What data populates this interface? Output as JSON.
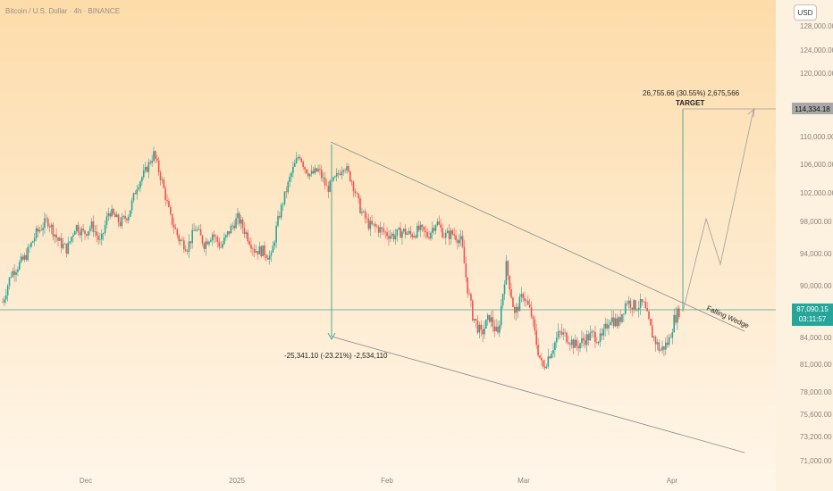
{
  "header": {
    "symbol_title": "Bitcoin / U.S. Dollar · 4h · BINANCE",
    "currency": "USD"
  },
  "colors": {
    "up": "#26a69a",
    "down": "#ef5350",
    "measure": "#3aa58c",
    "trendline": "#8a8a8a",
    "price_line": "#4aa58f",
    "badge_price": "#26a69a",
    "badge_target": "#9e9e9e"
  },
  "chart_data": {
    "type": "candlestick",
    "y_axis": {
      "ticks": [
        "128,000.00",
        "124,000.00",
        "120,000.00",
        "114,334.18",
        "110,000.00",
        "106,000.00",
        "102,000.00",
        "98,000.00",
        "94,000.00",
        "90,000.00",
        "87,090.15",
        "84,000.00",
        "81,000.00",
        "78,000.00",
        "75,600.00",
        "73,200.00",
        "71,000.00"
      ],
      "range": [
        70000,
        130000
      ]
    },
    "x_axis": {
      "labels": [
        "Dec",
        "2025",
        "Feb",
        "Mar",
        "Apr"
      ]
    },
    "price": {
      "last": 87090.15,
      "last_label": "87,090.15",
      "countdown": "03:11:57"
    },
    "target": {
      "value": 114334.18,
      "label": "114,334.18",
      "measure_text": "26,755.66 (30.55%) 2,675,566",
      "name": "TARGET"
    },
    "drop_measure": {
      "text": "-25,341.10 (-23.21%) -2,534,110"
    },
    "pattern_label": "Falling Wedge",
    "path": [
      {
        "t": 0,
        "p": 88000
      },
      {
        "t": 1.5,
        "p": 91500
      },
      {
        "t": 4,
        "p": 93500
      },
      {
        "t": 6,
        "p": 96500
      },
      {
        "t": 8,
        "p": 98200
      },
      {
        "t": 10,
        "p": 95500
      },
      {
        "t": 11.5,
        "p": 94500
      },
      {
        "t": 13,
        "p": 97500
      },
      {
        "t": 14.5,
        "p": 96500
      },
      {
        "t": 16,
        "p": 97500
      },
      {
        "t": 17.5,
        "p": 95200
      },
      {
        "t": 19,
        "p": 99500
      },
      {
        "t": 21,
        "p": 97800
      },
      {
        "t": 22.5,
        "p": 99000
      },
      {
        "t": 24,
        "p": 103000
      },
      {
        "t": 25.5,
        "p": 105000
      },
      {
        "t": 27,
        "p": 107500
      },
      {
        "t": 28.5,
        "p": 103500
      },
      {
        "t": 30,
        "p": 98500
      },
      {
        "t": 31.5,
        "p": 95800
      },
      {
        "t": 33,
        "p": 94800
      },
      {
        "t": 34.5,
        "p": 97200
      },
      {
        "t": 36,
        "p": 95200
      },
      {
        "t": 37.5,
        "p": 96500
      },
      {
        "t": 39,
        "p": 94800
      },
      {
        "t": 40.5,
        "p": 96800
      },
      {
        "t": 42,
        "p": 98500
      },
      {
        "t": 43.5,
        "p": 96500
      },
      {
        "t": 45,
        "p": 94500
      },
      {
        "t": 46.5,
        "p": 94300
      },
      {
        "t": 48,
        "p": 93500
      },
      {
        "t": 49,
        "p": 97500
      },
      {
        "t": 50,
        "p": 100500
      },
      {
        "t": 51.5,
        "p": 104500
      },
      {
        "t": 53,
        "p": 107500
      },
      {
        "t": 54,
        "p": 105500
      },
      {
        "t": 55,
        "p": 104500
      },
      {
        "t": 56.5,
        "p": 105200
      },
      {
        "t": 58,
        "p": 102500
      },
      {
        "t": 59.5,
        "p": 104000
      },
      {
        "t": 61,
        "p": 106000
      },
      {
        "t": 62.5,
        "p": 103500
      },
      {
        "t": 64,
        "p": 99500
      },
      {
        "t": 65.5,
        "p": 97500
      },
      {
        "t": 67,
        "p": 97200
      },
      {
        "t": 68.5,
        "p": 96500
      },
      {
        "t": 70,
        "p": 96200
      },
      {
        "t": 71.5,
        "p": 96800
      },
      {
        "t": 73,
        "p": 96300
      },
      {
        "t": 74.5,
        "p": 97000
      },
      {
        "t": 76,
        "p": 96200
      },
      {
        "t": 77.5,
        "p": 98000
      },
      {
        "t": 79,
        "p": 96200
      },
      {
        "t": 80.5,
        "p": 96500
      },
      {
        "t": 82,
        "p": 95500
      },
      {
        "t": 83,
        "p": 90000
      },
      {
        "t": 84,
        "p": 86500
      },
      {
        "t": 85.5,
        "p": 84300
      },
      {
        "t": 87,
        "p": 86300
      },
      {
        "t": 88.5,
        "p": 84200
      },
      {
        "t": 90,
        "p": 92500
      },
      {
        "t": 91.5,
        "p": 86500
      },
      {
        "t": 93,
        "p": 89000
      },
      {
        "t": 94.5,
        "p": 86500
      },
      {
        "t": 95.5,
        "p": 83000
      },
      {
        "t": 96.5,
        "p": 80500
      },
      {
        "t": 98,
        "p": 82500
      },
      {
        "t": 99.5,
        "p": 84500
      },
      {
        "t": 101,
        "p": 84000
      },
      {
        "t": 102.5,
        "p": 83000
      },
      {
        "t": 104,
        "p": 83800
      },
      {
        "t": 105.5,
        "p": 84300
      },
      {
        "t": 107,
        "p": 83700
      },
      {
        "t": 108.5,
        "p": 86300
      },
      {
        "t": 110,
        "p": 85500
      },
      {
        "t": 111.5,
        "p": 88200
      },
      {
        "t": 113,
        "p": 87500
      },
      {
        "t": 114.5,
        "p": 87800
      },
      {
        "t": 116,
        "p": 84500
      },
      {
        "t": 117.5,
        "p": 82500
      },
      {
        "t": 119,
        "p": 83500
      },
      {
        "t": 120,
        "p": 86000
      },
      {
        "t": 121,
        "p": 87090
      }
    ]
  }
}
